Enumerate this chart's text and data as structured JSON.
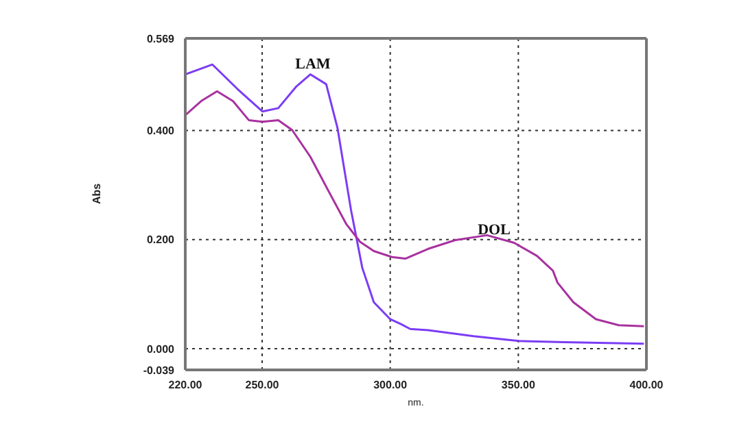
{
  "chart_data": {
    "type": "line",
    "xlabel": "nm.",
    "ylabel": "Abs",
    "xlim": [
      220,
      400
    ],
    "xticks": [
      {
        "value": 220,
        "label": "220.00"
      },
      {
        "value": 250,
        "label": "250.00"
      },
      {
        "value": 300,
        "label": "300.00"
      },
      {
        "value": 350,
        "label": "350.00"
      },
      {
        "value": 400,
        "label": "400.00"
      }
    ],
    "ylim": [
      -0.039,
      0.569
    ],
    "yticks": [
      {
        "value": -0.039,
        "label": "-0.039"
      },
      {
        "value": 0,
        "label": "0.000"
      },
      {
        "value": 0.2,
        "label": "0.200"
      },
      {
        "value": 0.4,
        "label": "0.400"
      },
      {
        "value": 0.569,
        "label": "0.569"
      }
    ],
    "grid": true,
    "marker": "none",
    "line_style": "solid",
    "series": [
      {
        "color": "#7b3cf5",
        "x": [
          220,
          230.6,
          240.4,
          250.1,
          256.3,
          263.4,
          268.8,
          275,
          279.4,
          284.7,
          289.1,
          293.6,
          297.1,
          300,
          304.2,
          307.8,
          314.8,
          332.5,
          350.2,
          367.9,
          399
        ],
        "values": [
          0.503,
          0.521,
          0.476,
          0.435,
          0.441,
          0.481,
          0.503,
          0.485,
          0.405,
          0.254,
          0.148,
          0.085,
          0.068,
          0.054,
          0.045,
          0.036,
          0.034,
          0.023,
          0.014,
          0.012,
          0.009
        ]
      },
      {
        "color": "#a8319f",
        "x": [
          220,
          226.2,
          232.4,
          238.6,
          244.8,
          250.1,
          256.3,
          261.7,
          268.8,
          275.8,
          282.9,
          288.2,
          293.6,
          300.7,
          305.9,
          314.8,
          325.4,
          337.8,
          348.4,
          357.3,
          363.5,
          365.3,
          371.5,
          380.3,
          389.2,
          399
        ],
        "values": [
          0.428,
          0.454,
          0.472,
          0.454,
          0.419,
          0.416,
          0.419,
          0.401,
          0.352,
          0.29,
          0.228,
          0.196,
          0.179,
          0.168,
          0.165,
          0.183,
          0.199,
          0.208,
          0.194,
          0.17,
          0.143,
          0.121,
          0.085,
          0.054,
          0.043,
          0.041
        ]
      }
    ],
    "annotations": [
      "LAM",
      "DOL"
    ]
  }
}
